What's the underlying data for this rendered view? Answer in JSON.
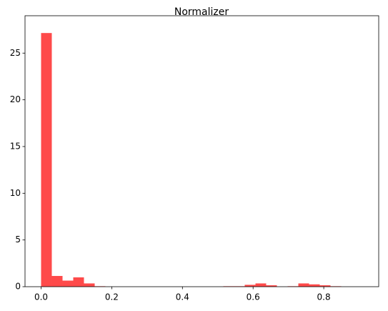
{
  "chart_data": {
    "type": "histogram",
    "title": "Normalizer",
    "bins": [
      0,
      0.0303,
      0.0607,
      0.091,
      0.1213,
      0.1517,
      0.182,
      0.2123,
      0.2427,
      0.273,
      0.3033,
      0.3337,
      0.364,
      0.3943,
      0.4247,
      0.455,
      0.4853,
      0.5157,
      0.546,
      0.5763,
      0.6067,
      0.637,
      0.6673,
      0.6977,
      0.728,
      0.7583,
      0.7887,
      0.819,
      0.8493,
      0.8797,
      0.91
    ],
    "values": [
      27.15,
      1.15,
      0.65,
      1.0,
      0.35,
      0.05,
      0,
      0,
      0,
      0,
      0,
      0,
      0,
      0,
      0,
      0,
      0,
      0.05,
      0.05,
      0.2,
      0.35,
      0.15,
      0,
      0.05,
      0.35,
      0.25,
      0.15,
      0.05,
      0,
      0
    ],
    "color": "#fe4a4a",
    "xlim": [
      -0.0455,
      0.9555
    ],
    "xticks": [
      {
        "value": 0,
        "label": "0.0"
      },
      {
        "value": 0.2,
        "label": "0.2"
      },
      {
        "value": 0.4,
        "label": "0.4"
      },
      {
        "value": 0.6,
        "label": "0.6"
      },
      {
        "value": 0.8,
        "label": "0.8"
      }
    ],
    "ylim": [
      0,
      29
    ],
    "yticks": [
      0,
      5,
      10,
      15,
      20,
      25
    ]
  }
}
